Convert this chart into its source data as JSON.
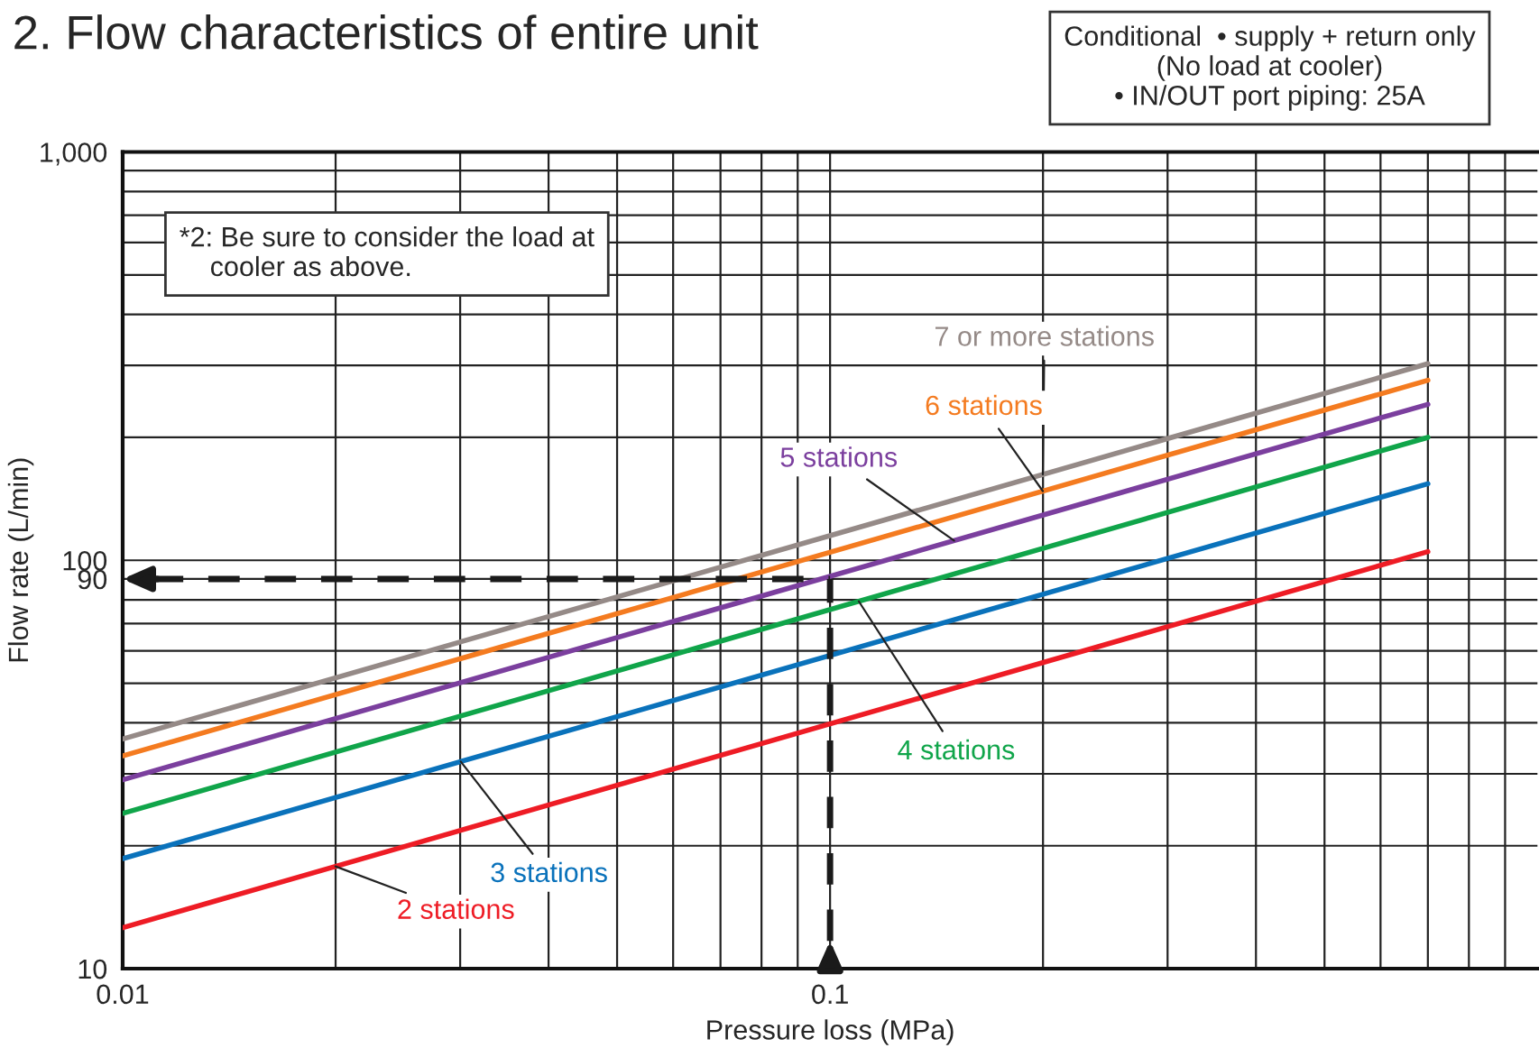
{
  "chart_data": {
    "type": "line",
    "title": "2. Flow characteristics of entire unit",
    "xlabel": "Pressure loss (MPa)",
    "ylabel": "Flow rate (L/min)",
    "log": "xy",
    "xlim": [
      0.01,
      1
    ],
    "ylim": [
      10,
      1000
    ],
    "xticks": [
      0.01,
      0.1
    ],
    "yticks": [
      10,
      90,
      100,
      {
        "value": 1000,
        "label": "1,000"
      }
    ],
    "grid": true,
    "legend": false,
    "line_style": "solid",
    "marker": "none",
    "ref_lines": [
      {
        "axis": "y",
        "value": 90,
        "line_style": "dashed",
        "color": "#1a1a1a"
      },
      {
        "axis": "x",
        "value": 0.1,
        "line_style": "dashed",
        "color": "#1a1a1a"
      }
    ],
    "annotations": [
      "Conditional  • supply + return only\n(No load at cooler)\n• IN/OUT port piping: 25A",
      "*2: Be sure to consider the load at\n    cooler as above."
    ],
    "x": [
      0.01,
      0.7
    ],
    "series": [
      {
        "name": "7 or more stations",
        "color": "#958a87",
        "values": [
          36.5,
          303
        ]
      },
      {
        "name": "6 stations",
        "color": "#f47b20",
        "values": [
          33.2,
          276
        ]
      },
      {
        "name": "5 stations",
        "color": "#7b3f9e",
        "values": [
          29.0,
          241
        ]
      },
      {
        "name": "4 stations",
        "color": "#10a54a",
        "values": [
          24.0,
          200
        ]
      },
      {
        "name": "3 stations",
        "color": "#0a72bb",
        "values": [
          18.6,
          154
        ]
      },
      {
        "name": "2 stations",
        "color": "#ee1c25",
        "values": [
          12.6,
          105
        ]
      }
    ]
  }
}
